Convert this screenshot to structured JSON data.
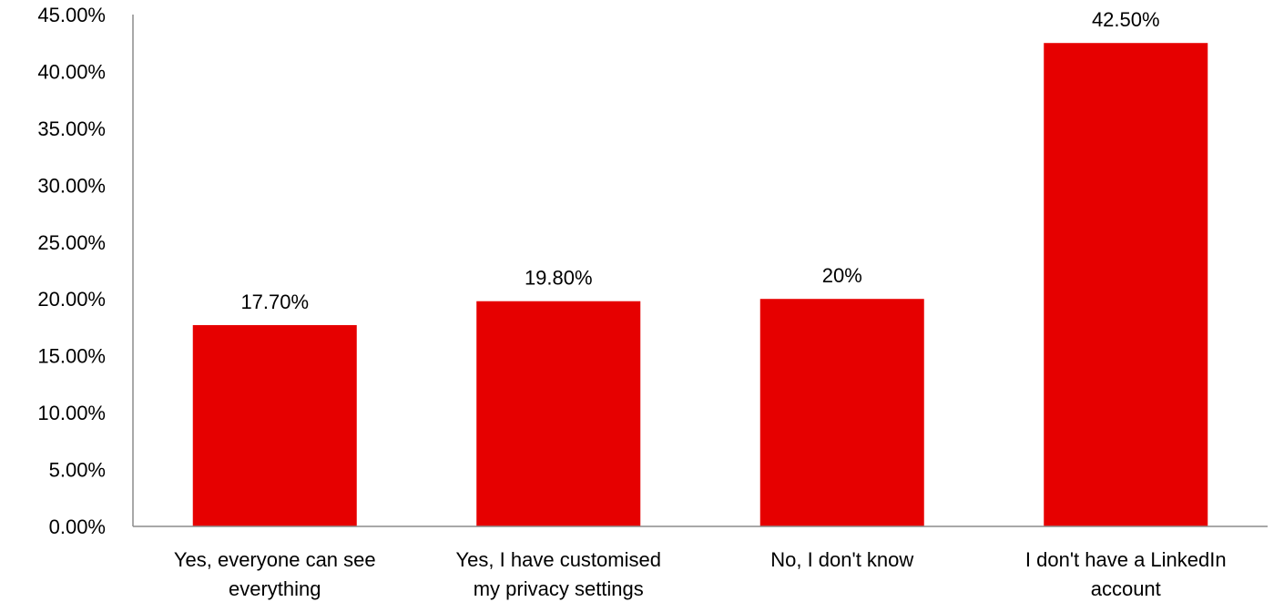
{
  "chart_data": {
    "type": "bar",
    "categories": [
      [
        "Yes, everyone can see",
        "everything"
      ],
      [
        "Yes, I have customised",
        "my privacy settings"
      ],
      [
        "No, I don't know"
      ],
      [
        "I don't have a LinkedIn",
        "account"
      ]
    ],
    "values": [
      17.7,
      19.8,
      20.0,
      42.5
    ],
    "data_labels": [
      "17.70%",
      "19.80%",
      "20%",
      "42.50%"
    ],
    "y_ticks": [
      0,
      5,
      10,
      15,
      20,
      25,
      30,
      35,
      40,
      45
    ],
    "y_tick_labels": [
      "0.00%",
      "5.00%",
      "10.00%",
      "15.00%",
      "20.00%",
      "25.00%",
      "30.00%",
      "35.00%",
      "40.00%",
      "45.00%"
    ],
    "ylim": [
      0,
      45
    ],
    "title": "",
    "xlabel": "",
    "ylabel": "",
    "grid": false,
    "legend": "none",
    "bar_color": "#e60000"
  }
}
